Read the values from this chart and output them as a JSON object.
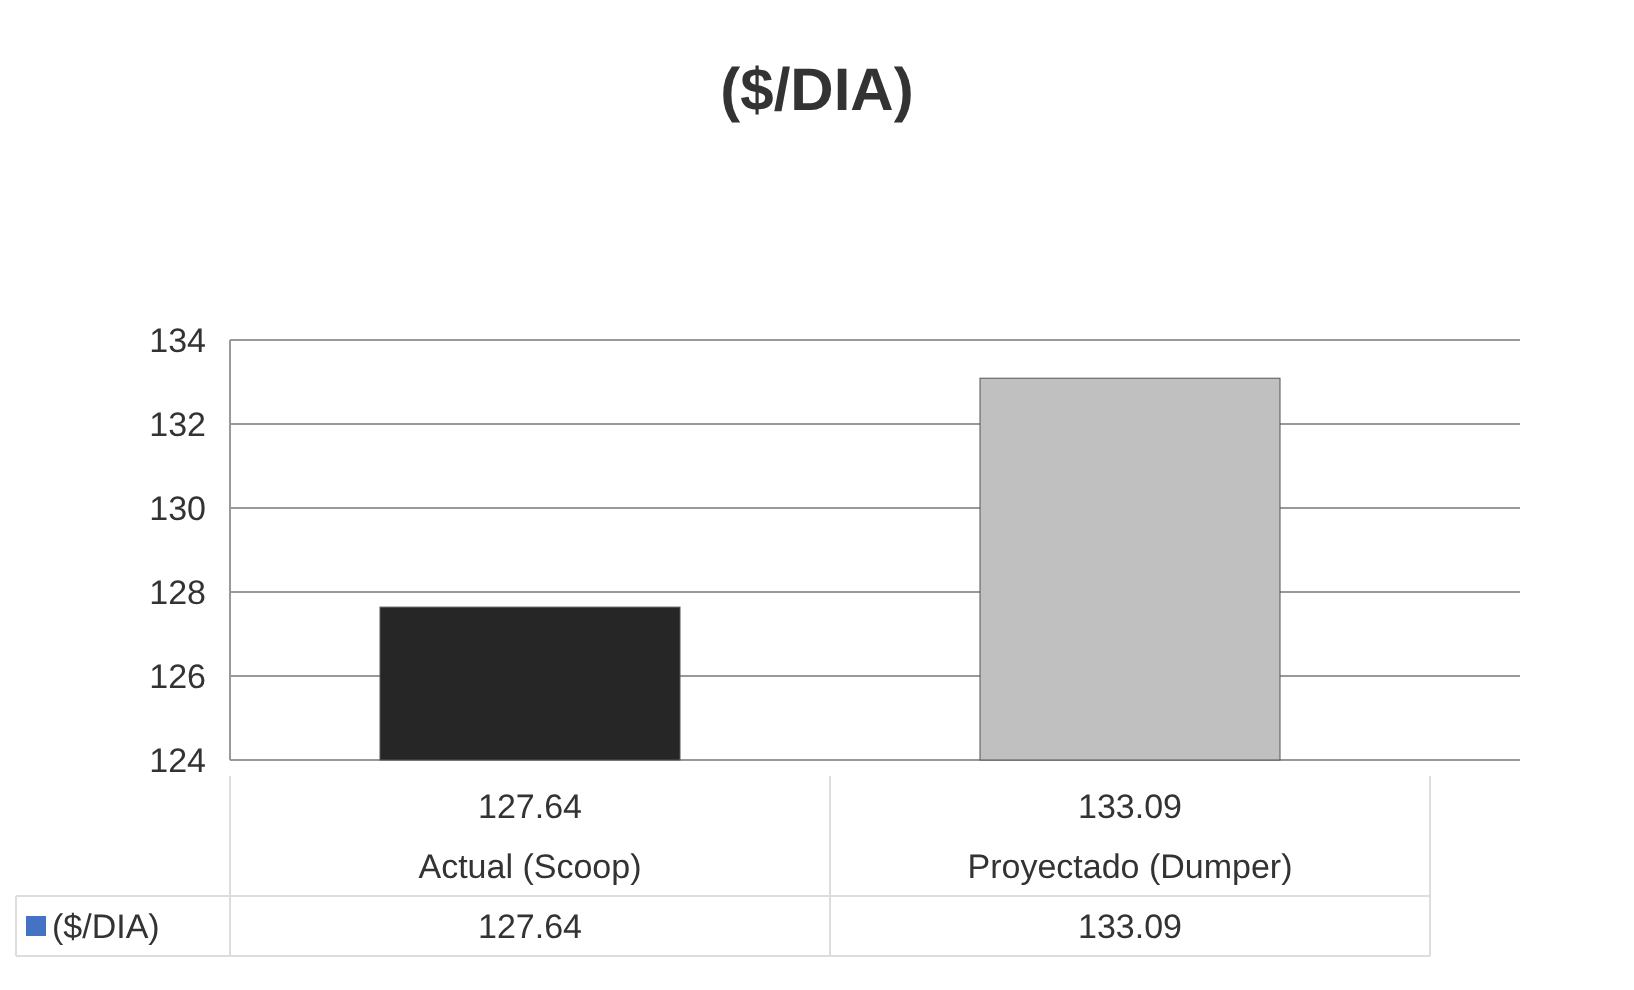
{
  "chart_data": {
    "type": "bar",
    "title": "($/DIA)",
    "categories": [
      "Actual (Scoop)",
      "Proyectado (Dumper)"
    ],
    "series": [
      {
        "name": "($/DIA)",
        "color": "#4472c4",
        "colors": [
          "#262626",
          "#c0c0c0"
        ],
        "values": [
          127.64,
          133.09
        ],
        "value_labels": [
          "127.64",
          "133.09"
        ]
      }
    ],
    "ylim": [
      124,
      134
    ],
    "yticks": [
      124,
      126,
      128,
      130,
      132,
      134
    ],
    "grid": "y",
    "legend": "bottom",
    "annotations": [
      "127.64",
      "133.09"
    ]
  }
}
